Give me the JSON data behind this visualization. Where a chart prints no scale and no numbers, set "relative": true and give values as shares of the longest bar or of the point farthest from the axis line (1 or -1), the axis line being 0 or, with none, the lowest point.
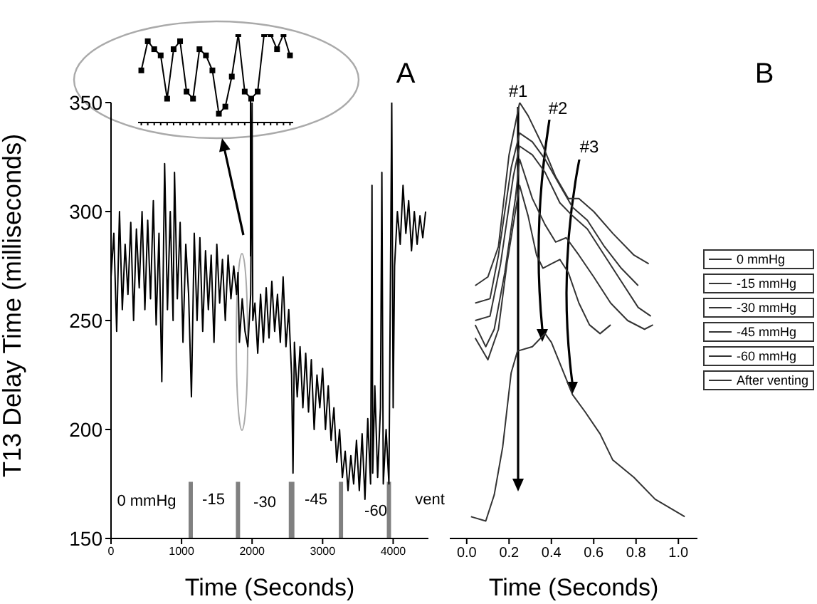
{
  "chart_data": [
    {
      "type": "line",
      "annotations": [
        "A",
        "0 mmHg",
        "-15",
        "-30",
        "-45",
        "-60",
        "vent"
      ],
      "xlabel": "Time (Seconds)",
      "ylabel": "T13 Delay Time (milliseconds)",
      "xlim": [
        0,
        4500
      ],
      "xticks": [
        0,
        1000,
        2000,
        3000,
        4000
      ],
      "ylim": [
        150,
        350
      ],
      "yticks": [
        150,
        200,
        250,
        300,
        350
      ],
      "bands": [
        {
          "axis": "x",
          "from": 1100,
          "to": 1160,
          "color": "#808080"
        },
        {
          "axis": "x",
          "from": 1770,
          "to": 1830,
          "color": "#808080"
        },
        {
          "axis": "x",
          "from": 2520,
          "to": 2600,
          "color": "#808080"
        },
        {
          "axis": "x",
          "from": 3230,
          "to": 3290,
          "color": "#808080"
        },
        {
          "axis": "x",
          "from": 3910,
          "to": 3970,
          "color": "#808080"
        }
      ],
      "marker": "none",
      "grid": false,
      "legend": false,
      "series": [
        {
          "color": "#000000",
          "x": [
            0,
            40,
            80,
            120,
            160,
            200,
            240,
            280,
            320,
            360,
            400,
            440,
            480,
            520,
            560,
            600,
            640,
            680,
            720,
            760,
            800,
            840,
            880,
            900,
            940,
            980,
            1020,
            1060,
            1100,
            1140,
            1180,
            1220,
            1260,
            1300,
            1340,
            1380,
            1420,
            1460,
            1500,
            1540,
            1580,
            1620,
            1660,
            1700,
            1740,
            1780,
            1800,
            1820,
            1860,
            1900,
            1940,
            1980,
            2000,
            2010,
            2040,
            2080,
            2120,
            2160,
            2200,
            2240,
            2280,
            2320,
            2360,
            2400,
            2440,
            2480,
            2520,
            2560,
            2580,
            2600,
            2640,
            2680,
            2720,
            2760,
            2800,
            2840,
            2880,
            2920,
            2960,
            3000,
            3040,
            3080,
            3120,
            3160,
            3200,
            3240,
            3280,
            3320,
            3360,
            3400,
            3440,
            3480,
            3520,
            3560,
            3600,
            3640,
            3680,
            3700,
            3710,
            3740,
            3780,
            3820,
            3840,
            3860,
            3900,
            3940,
            3980,
            4000,
            4020,
            4060,
            4100,
            4140,
            4180,
            4220,
            4260,
            4300,
            4340,
            4380,
            4420,
            4460
          ],
          "values": [
            270,
            290,
            245,
            300,
            255,
            285,
            262,
            295,
            250,
            292,
            265,
            300,
            255,
            296,
            260,
            305,
            248,
            290,
            222,
            322,
            255,
            300,
            250,
            318,
            260,
            295,
            240,
            285,
            262,
            215,
            290,
            250,
            288,
            245,
            282,
            255,
            280,
            240,
            285,
            258,
            278,
            250,
            280,
            260,
            275,
            262,
            272,
            240,
            260,
            245,
            238,
            262,
            350,
            250,
            258,
            235,
            262,
            240,
            265,
            242,
            268,
            245,
            262,
            240,
            270,
            238,
            255,
            225,
            180,
            240,
            215,
            238,
            210,
            235,
            208,
            232,
            200,
            225,
            210,
            228,
            200,
            220,
            195,
            210,
            185,
            200,
            178,
            190,
            172,
            188,
            175,
            195,
            172,
            198,
            168,
            205,
            175,
            312,
            180,
            220,
            178,
            210,
            318,
            175,
            200,
            175,
            350,
            210,
            275,
            300,
            285,
            312,
            290,
            305,
            282,
            300,
            285,
            298,
            288,
            300
          ]
        }
      ]
    },
    {
      "type": "line",
      "relative": true,
      "annotations": [
        "B",
        "#1",
        "#2",
        "#3"
      ],
      "xlabel": "Time (Seconds)",
      "xlim": [
        -0.08,
        1.09
      ],
      "xticks": [
        {
          "value": 0,
          "label": "0.0"
        },
        {
          "value": 0.2,
          "label": "0.2"
        },
        {
          "value": 0.4,
          "label": "0.4"
        },
        {
          "value": 0.6,
          "label": "0.6"
        },
        {
          "value": 0.8,
          "label": "0.8"
        },
        {
          "value": 1,
          "label": "1.0"
        }
      ],
      "marker": "none",
      "grid": false,
      "legend": "right",
      "series": [
        {
          "name": "0 mmHg",
          "color": "#333333",
          "x": [
            0.04,
            0.1,
            0.15,
            0.2,
            0.25,
            0.29,
            0.36,
            0.42,
            0.48,
            0.53,
            0.6,
            0.69,
            0.79,
            0.86
          ],
          "values": [
            0.58,
            0.6,
            0.67,
            0.88,
            1,
            0.97,
            0.9,
            0.83,
            0.78,
            0.78,
            0.75,
            0.7,
            0.65,
            0.63
          ]
        },
        {
          "name": "-15 mmHg",
          "color": "#333333",
          "x": [
            0.04,
            0.11,
            0.15,
            0.21,
            0.25,
            0.31,
            0.37,
            0.44,
            0.5,
            0.57,
            0.65,
            0.73,
            0.81
          ],
          "values": [
            0.54,
            0.55,
            0.65,
            0.85,
            0.93,
            0.91,
            0.87,
            0.81,
            0.76,
            0.73,
            0.67,
            0.62,
            0.58
          ]
        },
        {
          "name": "-30 mmHg",
          "color": "#333333",
          "x": [
            0.04,
            0.11,
            0.16,
            0.22,
            0.25,
            0.31,
            0.37,
            0.44,
            0.5,
            0.57,
            0.65,
            0.73,
            0.81,
            0.87
          ],
          "values": [
            0.5,
            0.51,
            0.63,
            0.83,
            0.9,
            0.88,
            0.84,
            0.77,
            0.74,
            0.71,
            0.65,
            0.59,
            0.53,
            0.51
          ]
        },
        {
          "name": "-45 mmHg",
          "color": "#333333",
          "x": [
            0.04,
            0.09,
            0.13,
            0.18,
            0.23,
            0.25,
            0.31,
            0.37,
            0.42,
            0.47,
            0.53,
            0.6,
            0.68,
            0.76,
            0.84,
            0.88
          ],
          "values": [
            0.49,
            0.44,
            0.48,
            0.61,
            0.78,
            0.87,
            0.78,
            0.72,
            0.68,
            0.69,
            0.65,
            0.6,
            0.54,
            0.5,
            0.48,
            0.49
          ]
        },
        {
          "name": "-60 mmHg",
          "color": "#333333",
          "x": [
            0.04,
            0.1,
            0.15,
            0.19,
            0.25,
            0.29,
            0.33,
            0.36,
            0.4,
            0.44,
            0.48,
            0.53,
            0.58,
            0.63,
            0.68
          ],
          "values": [
            0.46,
            0.41,
            0.48,
            0.63,
            0.81,
            0.74,
            0.65,
            0.62,
            0.63,
            0.64,
            0.61,
            0.54,
            0.49,
            0.47,
            0.49
          ]
        },
        {
          "name": "After venting",
          "color": "#333333",
          "x": [
            0.02,
            0.09,
            0.13,
            0.17,
            0.21,
            0.24,
            0.31,
            0.37,
            0.4,
            0.45,
            0.5,
            0.56,
            0.63,
            0.69,
            0.79,
            0.89,
            1.03
          ],
          "values": [
            0.05,
            0.04,
            0.1,
            0.21,
            0.38,
            0.43,
            0.44,
            0.47,
            0.45,
            0.39,
            0.33,
            0.29,
            0.24,
            0.18,
            0.14,
            0.09,
            0.05
          ]
        }
      ]
    },
    {
      "type": "line",
      "relative": true,
      "categories": [
        null,
        null,
        null,
        null,
        null,
        null,
        null,
        null,
        null,
        null,
        null,
        null,
        null,
        null,
        null,
        null,
        null,
        null,
        null,
        null,
        null,
        null,
        null,
        null
      ],
      "marker": "square",
      "grid": false,
      "legend": false,
      "series": [
        {
          "color": "#000000",
          "values": [
            0.59,
            0.92,
            0.83,
            0.76,
            0.27,
            0.83,
            0.92,
            0.35,
            0.27,
            0.83,
            0.76,
            0.59,
            0.1,
            0.18,
            0.52,
            1,
            0.35,
            0.27,
            0.35,
            1,
            1,
            0.83,
            1,
            0.76
          ]
        }
      ]
    }
  ]
}
